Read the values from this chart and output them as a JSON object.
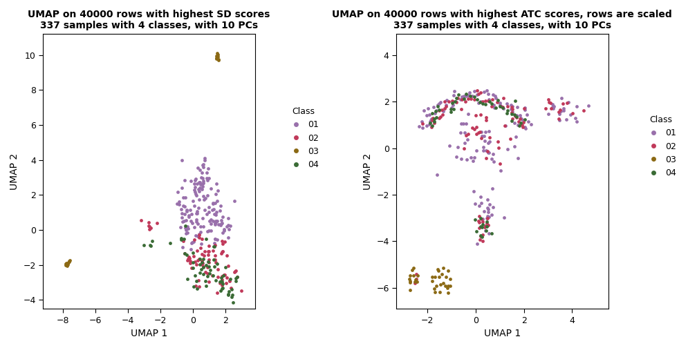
{
  "plot1": {
    "title": "UMAP on 40000 rows with highest SD scores\n337 samples with 4 classes, with 10 PCs",
    "xlabel": "UMAP 1",
    "ylabel": "UMAP 2",
    "xlim": [
      -9.2,
      3.8
    ],
    "ylim": [
      -4.5,
      11.2
    ],
    "xticks": [
      -8,
      -6,
      -4,
      -2,
      0,
      2
    ],
    "yticks": [
      -4,
      -2,
      0,
      2,
      4,
      6,
      8,
      10
    ]
  },
  "plot2": {
    "title": "UMAP on 40000 rows with highest ATC scores, rows are scaled\n337 samples with 4 classes, with 10 PCs",
    "xlabel": "UMAP 1",
    "ylabel": "UMAP 2",
    "xlim": [
      -3.3,
      5.5
    ],
    "ylim": [
      -6.9,
      4.9
    ],
    "xticks": [
      -2,
      0,
      2,
      4
    ],
    "yticks": [
      -6,
      -4,
      -2,
      0,
      2,
      4
    ]
  },
  "classes": [
    "01",
    "02",
    "03",
    "04"
  ],
  "colors": [
    "#9970AB",
    "#C0395A",
    "#8B6914",
    "#3A6B35"
  ],
  "legend_title": "Class",
  "point_size": 12,
  "bg_color": "#FFFFFF",
  "panel_bg": "#FFFFFF"
}
